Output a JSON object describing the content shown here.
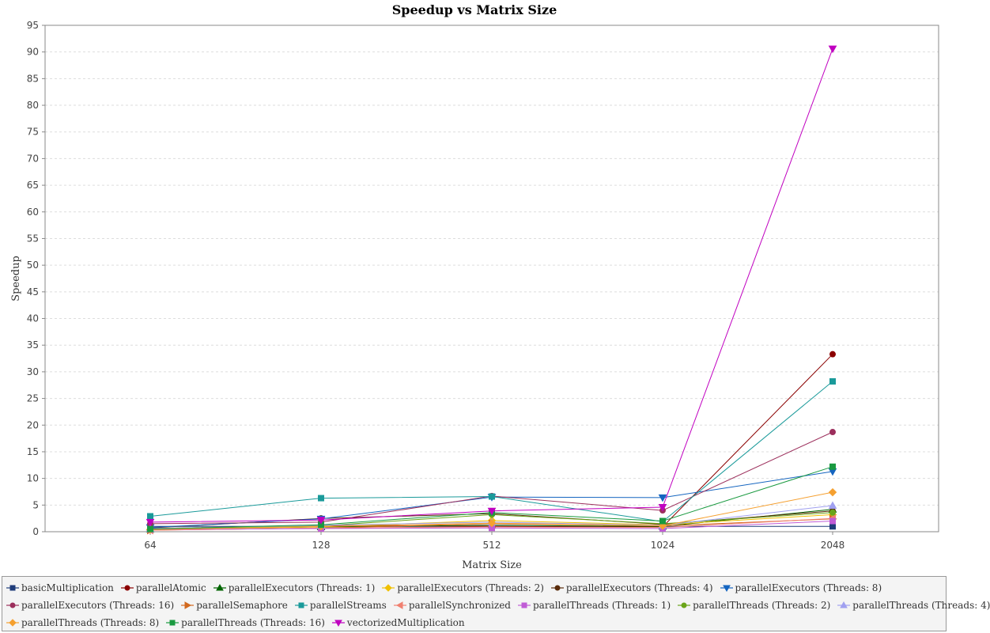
{
  "chart_data": {
    "type": "line",
    "title": "Speedup vs Matrix Size",
    "xlabel": "Matrix Size",
    "ylabel": "Speedup",
    "categories": [
      "64",
      "128",
      "512",
      "1024",
      "2048"
    ],
    "ylim": [
      0,
      95
    ],
    "yticks": [
      0,
      5,
      10,
      15,
      20,
      25,
      30,
      35,
      40,
      45,
      50,
      55,
      60,
      65,
      70,
      75,
      80,
      85,
      90,
      95
    ],
    "grid": true,
    "legend_position": "bottom",
    "series": [
      {
        "name": "basicMultiplication",
        "color": "#1f3c7a",
        "marker": "square",
        "values": [
          1.0,
          1.0,
          1.0,
          1.0,
          1.0
        ]
      },
      {
        "name": "parallelAtomic",
        "color": "#8b0000",
        "marker": "circle",
        "values": [
          0.6,
          1.2,
          1.0,
          0.9,
          33.3
        ]
      },
      {
        "name": "parallelExecutors (Threads: 1)",
        "color": "#006400",
        "marker": "triangle-up",
        "values": [
          0.5,
          0.9,
          1.2,
          1.0,
          4.2
        ]
      },
      {
        "name": "parallelExecutors (Threads: 2)",
        "color": "#f0c000",
        "marker": "diamond",
        "values": [
          0.4,
          0.9,
          2.1,
          1.3,
          3.2
        ]
      },
      {
        "name": "parallelExecutors (Threads: 4)",
        "color": "#5a2d0c",
        "marker": "circle",
        "values": [
          0.7,
          2.5,
          3.4,
          1.4,
          3.9
        ]
      },
      {
        "name": "parallelExecutors (Threads: 8)",
        "color": "#1565c0",
        "marker": "triangle-down",
        "values": [
          0.8,
          2.4,
          6.5,
          6.4,
          11.3
        ]
      },
      {
        "name": "parallelExecutors (Threads: 16)",
        "color": "#9c2f5c",
        "marker": "circle",
        "values": [
          1.5,
          1.8,
          6.7,
          4.0,
          18.7
        ]
      },
      {
        "name": "parallelSemaphore",
        "color": "#d2691e",
        "marker": "triangle-right",
        "values": [
          0.3,
          0.7,
          1.5,
          1.1,
          2.4
        ]
      },
      {
        "name": "parallelStreams",
        "color": "#1a9a9a",
        "marker": "square",
        "values": [
          2.9,
          6.3,
          6.6,
          1.9,
          28.2
        ]
      },
      {
        "name": "parallelSynchronized",
        "color": "#f08070",
        "marker": "triangle-left",
        "values": [
          0.3,
          0.7,
          0.9,
          0.8,
          2.5
        ]
      },
      {
        "name": "parallelThreads (Threads: 1)",
        "color": "#c05cd6",
        "marker": "square",
        "values": [
          0.4,
          0.6,
          0.7,
          0.6,
          2.0
        ]
      },
      {
        "name": "parallelThreads (Threads: 2)",
        "color": "#6aa51a",
        "marker": "circle",
        "values": [
          0.5,
          1.1,
          3.2,
          1.5,
          3.6
        ]
      },
      {
        "name": "parallelThreads (Threads: 4)",
        "color": "#a0a0f0",
        "marker": "triangle-up",
        "values": [
          0.6,
          1.2,
          1.8,
          1.2,
          4.9
        ]
      },
      {
        "name": "parallelThreads (Threads: 8)",
        "color": "#f5a030",
        "marker": "diamond",
        "values": [
          0.4,
          1.0,
          1.6,
          1.1,
          7.4
        ]
      },
      {
        "name": "parallelThreads (Threads: 16)",
        "color": "#1a9a40",
        "marker": "square",
        "values": [
          0.5,
          1.3,
          3.6,
          2.0,
          12.2
        ]
      },
      {
        "name": "vectorizedMultiplication",
        "color": "#c000c0",
        "marker": "triangle-down",
        "values": [
          1.8,
          2.2,
          3.9,
          4.6,
          90.6
        ]
      }
    ]
  }
}
